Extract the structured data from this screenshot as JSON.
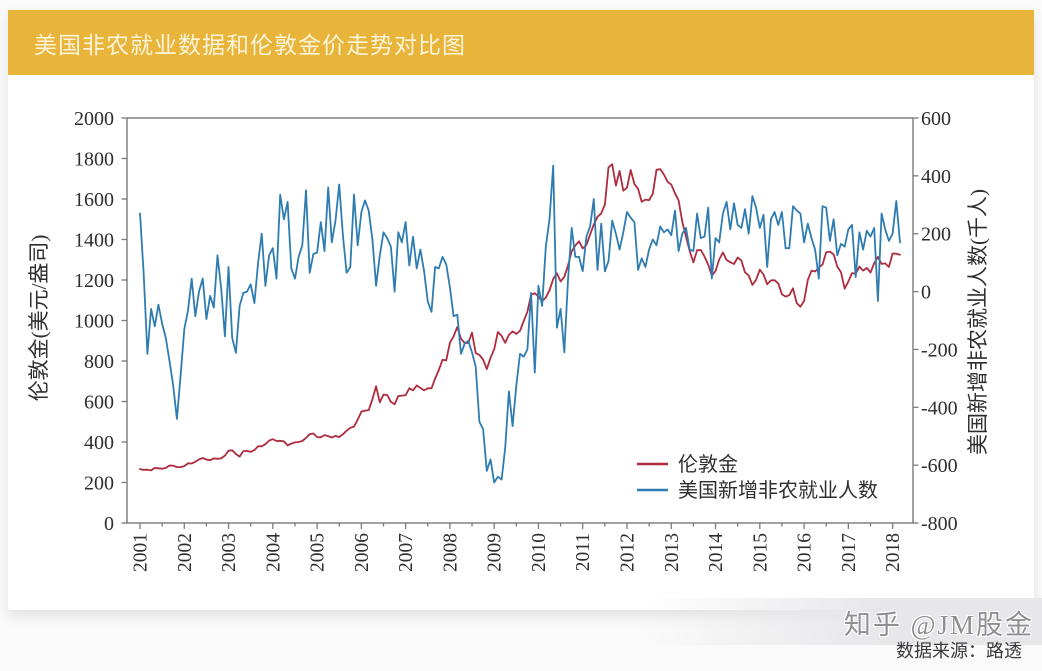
{
  "header": {
    "title": "美国非农就业数据和伦敦金价走势对比图",
    "bar_color": "#E8B43A"
  },
  "footer": {
    "source": "数据来源：路透"
  },
  "watermark": {
    "text": "知乎 @JM股金"
  },
  "chart_data": {
    "type": "line",
    "x_unit": "month",
    "x_start": "2001-01",
    "x_end": "2018-03",
    "x_tick_labels": [
      "2001",
      "2002",
      "2003",
      "2004",
      "2005",
      "2006",
      "2007",
      "2008",
      "2009",
      "2010",
      "2011",
      "2012",
      "2013",
      "2014",
      "2015",
      "2016",
      "2017",
      "2018"
    ],
    "grid": false,
    "left_axis": {
      "label": "伦敦金(美元/盎司)",
      "range": [
        0,
        2000
      ],
      "tick_step": 200,
      "tick_labels": [
        "2000",
        "1800",
        "1600",
        "1400",
        "1200",
        "1000",
        "800",
        "600",
        "400",
        "200",
        "0"
      ]
    },
    "right_axis": {
      "label": "美国新增非农就业人数(千人)",
      "range": [
        -800,
        600
      ],
      "tick_step": 200,
      "tick_labels": [
        "600",
        "400",
        "200",
        "0",
        "-200",
        "-400",
        "-600",
        "-800"
      ]
    },
    "legend": {
      "position": "inside-bottom-right"
    },
    "series": [
      {
        "name": "伦敦金",
        "axis": "left",
        "color": "#AE2C3E",
        "monthly_values": [
          266,
          262,
          263,
          260,
          272,
          270,
          268,
          272,
          284,
          283,
          276,
          276,
          281,
          295,
          294,
          302,
          314,
          321,
          313,
          310,
          319,
          317,
          319,
          333,
          357,
          359,
          340,
          328,
          355,
          356,
          351,
          360,
          379,
          379,
          389,
          407,
          414,
          405,
          406,
          403,
          383,
          392,
          398,
          400,
          405,
          420,
          439,
          442,
          424,
          423,
          434,
          429,
          422,
          430,
          424,
          438,
          456,
          470,
          476,
          510,
          550,
          555,
          557,
          611,
          675,
          596,
          634,
          632,
          598,
          586,
          627,
          629,
          631,
          665,
          655,
          679,
          667,
          655,
          665,
          665,
          713,
          755,
          806,
          803,
          890,
          922,
          968,
          910,
          889,
          889,
          940,
          839,
          830,
          807,
          760,
          816,
          858,
          943,
          924,
          890,
          929,
          946,
          934,
          949,
          997,
          1043,
          1127,
          1135,
          1118,
          1095,
          1113,
          1149,
          1205,
          1233,
          1193,
          1216,
          1271,
          1342,
          1370,
          1391,
          1356,
          1373,
          1424,
          1474,
          1512,
          1529,
          1573,
          1756,
          1772,
          1666,
          1739,
          1641,
          1656,
          1743,
          1674,
          1650,
          1586,
          1597,
          1594,
          1626,
          1744,
          1747,
          1721,
          1685,
          1671,
          1628,
          1593,
          1487,
          1414,
          1343,
          1287,
          1347,
          1348,
          1316,
          1276,
          1221,
          1244,
          1301,
          1336,
          1299,
          1288,
          1279,
          1311,
          1296,
          1238,
          1222,
          1176,
          1201,
          1251,
          1227,
          1179,
          1198,
          1199,
          1182,
          1130,
          1118,
          1125,
          1159,
          1086,
          1068,
          1097,
          1200,
          1246,
          1242,
          1261,
          1276,
          1337,
          1340,
          1327,
          1266,
          1238,
          1157,
          1192,
          1234,
          1231,
          1266,
          1246,
          1260,
          1237,
          1283,
          1314,
          1280,
          1282,
          1264,
          1331,
          1330,
          1325
        ]
      },
      {
        "name": "美国新增非农就业人数",
        "axis": "right",
        "color": "#2E7CB0",
        "monthly_values": [
          270,
          60,
          -215,
          -60,
          -120,
          -45,
          -110,
          -160,
          -240,
          -325,
          -440,
          -290,
          -130,
          -65,
          45,
          -85,
          0,
          45,
          -95,
          -15,
          -55,
          125,
          10,
          -155,
          85,
          -160,
          -212,
          -50,
          -5,
          0,
          25,
          -40,
          100,
          200,
          20,
          125,
          150,
          45,
          335,
          250,
          310,
          80,
          45,
          120,
          160,
          350,
          65,
          130,
          135,
          240,
          140,
          360,
          170,
          245,
          370,
          195,
          65,
          85,
          335,
          160,
          275,
          315,
          280,
          180,
          20,
          125,
          205,
          185,
          155,
          0,
          205,
          170,
          240,
          90,
          190,
          80,
          145,
          70,
          -35,
          -70,
          85,
          80,
          120,
          95,
          15,
          -85,
          -80,
          -215,
          -180,
          -170,
          -210,
          -260,
          -450,
          -475,
          -620,
          -580,
          -660,
          -640,
          -650,
          -540,
          -345,
          -465,
          -325,
          -215,
          -225,
          -200,
          -5,
          -280,
          20,
          -50,
          155,
          250,
          435,
          -125,
          -60,
          -210,
          40,
          220,
          120,
          120,
          70,
          190,
          225,
          320,
          75,
          235,
          70,
          105,
          245,
          200,
          145,
          205,
          275,
          255,
          240,
          75,
          115,
          85,
          145,
          180,
          160,
          225,
          205,
          215,
          195,
          280,
          140,
          200,
          220,
          145,
          140,
          270,
          185,
          190,
          290,
          45,
          185,
          170,
          270,
          310,
          215,
          305,
          230,
          220,
          285,
          200,
          330,
          290,
          220,
          265,
          85,
          250,
          275,
          230,
          275,
          150,
          150,
          295,
          280,
          270,
          170,
          235,
          185,
          145,
          45,
          295,
          290,
          175,
          250,
          125,
          165,
          155,
          215,
          230,
          50,
          205,
          145,
          210,
          190,
          220,
          -33,
          270,
          215,
          175,
          200,
          313,
          170
        ]
      }
    ]
  }
}
